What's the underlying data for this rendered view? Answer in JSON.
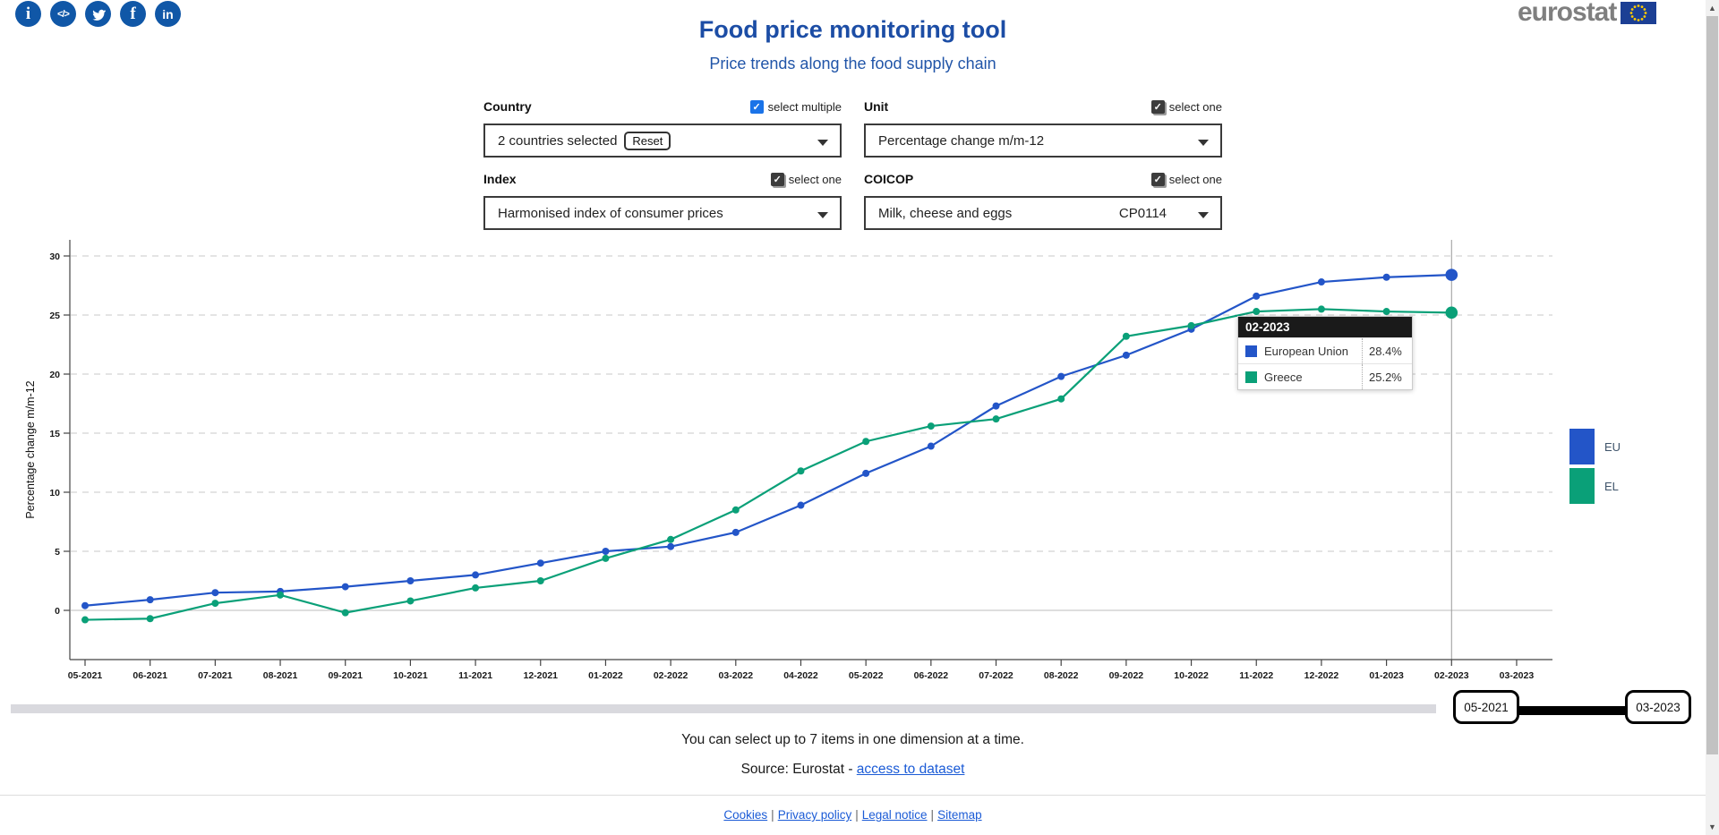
{
  "header": {
    "logo_text": "eurostat",
    "social_icons": [
      "info",
      "embed-code",
      "twitter",
      "facebook",
      "linkedin"
    ],
    "linkedin_glyph": "in",
    "facebook_glyph": "f",
    "info_glyph": "i",
    "code_glyph": "</>"
  },
  "title": "Food price monitoring tool",
  "subtitle": "Price trends along the food supply chain",
  "controls": {
    "country": {
      "label": "Country",
      "mode": "select multiple",
      "value": "2 countries selected",
      "reset_label": "Reset"
    },
    "unit": {
      "label": "Unit",
      "mode": "select one",
      "value": "Percentage change m/m-12"
    },
    "index": {
      "label": "Index",
      "mode": "select one",
      "value": "Harmonised index of consumer prices"
    },
    "coicop": {
      "label": "COICOP",
      "mode": "select one",
      "value": "Milk, cheese and eggs",
      "code": "CP0114"
    }
  },
  "chart_data": {
    "type": "line",
    "title": "",
    "xlabel": "",
    "ylabel": "Percentage change m/m-12",
    "x": [
      "05-2021",
      "06-2021",
      "07-2021",
      "08-2021",
      "09-2021",
      "10-2021",
      "11-2021",
      "12-2021",
      "01-2022",
      "02-2022",
      "03-2022",
      "04-2022",
      "05-2022",
      "06-2022",
      "07-2022",
      "08-2022",
      "09-2022",
      "10-2022",
      "11-2022",
      "12-2022",
      "01-2023",
      "02-2023",
      "03-2023"
    ],
    "series": [
      {
        "name": "EU",
        "label": "European Union",
        "color": "#2355c8",
        "values": [
          0.4,
          0.9,
          1.5,
          1.6,
          2.0,
          2.5,
          3.0,
          4.0,
          5.0,
          5.4,
          6.6,
          8.9,
          11.6,
          13.9,
          17.3,
          19.8,
          21.6,
          23.8,
          26.6,
          27.8,
          28.2,
          28.4
        ]
      },
      {
        "name": "EL",
        "label": "Greece",
        "color": "#0aa078",
        "values": [
          -0.8,
          -0.7,
          0.6,
          1.3,
          -0.2,
          0.8,
          1.9,
          2.5,
          4.4,
          6.0,
          8.5,
          11.8,
          14.3,
          15.6,
          16.2,
          17.9,
          23.2,
          24.1,
          25.3,
          25.5,
          25.3,
          25.2
        ]
      }
    ],
    "yticks": [
      0,
      5,
      10,
      15,
      20,
      25,
      30
    ],
    "ylim": [
      -4,
      31
    ],
    "grid": "horizontal-dashed",
    "legend_position": "right",
    "highlight_x": "02-2023"
  },
  "tooltip": {
    "title": "02-2023",
    "rows": [
      {
        "label": "European Union",
        "value": "28.4%",
        "color": "#2355c8"
      },
      {
        "label": "Greece",
        "value": "25.2%",
        "color": "#0aa078"
      }
    ]
  },
  "legend": [
    {
      "code": "EU",
      "color": "#2355c8"
    },
    {
      "code": "EL",
      "color": "#0aa078"
    }
  ],
  "slider": {
    "start": "05-2021",
    "end": "03-2023"
  },
  "footer": {
    "note": "You can select up to 7 items in one dimension at a time.",
    "source_prefix": "Source: Eurostat - ",
    "source_link": "access to dataset",
    "links": [
      "Cookies",
      "Privacy policy",
      "Legal notice",
      "Sitemap"
    ]
  }
}
